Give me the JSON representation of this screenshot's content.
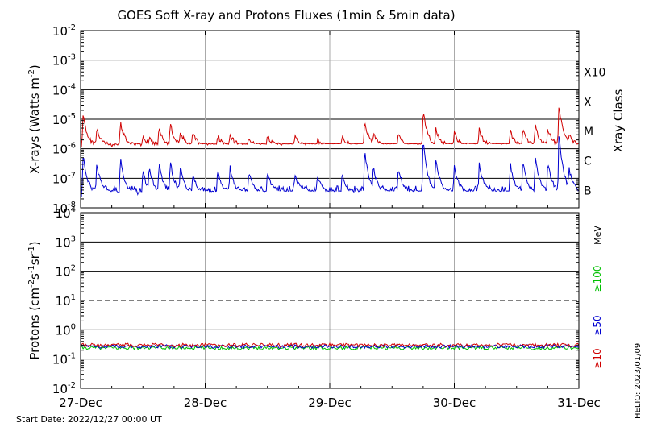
{
  "title": "GOES Soft X-ray and Protons Fluxes   (1min & 5min data)",
  "footer_left": "Start Date: 2022/12/27 00:00 UT",
  "footer_right": "HELIO: 2023/01/09",
  "chart_data": [
    {
      "type": "line",
      "name": "xray",
      "ylabel": "X-rays (Watts m",
      "ylabel_sup": "-2",
      "ylabel_close": ")",
      "yscale": "log",
      "ylim": [
        1e-08,
        0.01
      ],
      "xlim": [
        0,
        4
      ],
      "x_ticks": [
        0,
        1,
        2,
        3,
        4
      ],
      "x_tick_labels": [
        "27-Dec",
        "28-Dec",
        "29-Dec",
        "30-Dec",
        "31-Dec"
      ],
      "y_tick_labels": [
        {
          "base": "10",
          "exp": "-8"
        },
        {
          "base": "10",
          "exp": "-7"
        },
        {
          "base": "10",
          "exp": "-6"
        },
        {
          "base": "10",
          "exp": "-5"
        },
        {
          "base": "10",
          "exp": "-4"
        },
        {
          "base": "10",
          "exp": "-3"
        },
        {
          "base": "10",
          "exp": "-2"
        }
      ],
      "right_label": "Xray Class",
      "class_labels": [
        {
          "label": "B",
          "value": 1e-07
        },
        {
          "label": "C",
          "value": 1e-06
        },
        {
          "label": "M",
          "value": 1e-05
        },
        {
          "label": "X",
          "value": 0.0001
        },
        {
          "label": "X10",
          "value": 0.001
        }
      ],
      "series": [
        {
          "color": "#d00000",
          "baseline_log10": -5.9,
          "events": [
            [
              0.02,
              -4.85
            ],
            [
              0.13,
              -5.3
            ],
            [
              0.32,
              -5.1
            ],
            [
              0.5,
              -5.55
            ],
            [
              0.55,
              -5.6
            ],
            [
              0.63,
              -5.25
            ],
            [
              0.72,
              -5.15
            ],
            [
              0.8,
              -5.4
            ],
            [
              0.9,
              -5.45
            ],
            [
              1.1,
              -5.55
            ],
            [
              1.2,
              -5.5
            ],
            [
              1.35,
              -5.6
            ],
            [
              1.5,
              -5.55
            ],
            [
              1.72,
              -5.6
            ],
            [
              1.9,
              -5.7
            ],
            [
              2.1,
              -5.6
            ],
            [
              2.28,
              -5.05
            ],
            [
              2.35,
              -5.5
            ],
            [
              2.55,
              -5.45
            ],
            [
              2.75,
              -4.7
            ],
            [
              2.85,
              -5.3
            ],
            [
              3.0,
              -5.45
            ],
            [
              3.2,
              -5.35
            ],
            [
              3.45,
              -5.4
            ],
            [
              3.55,
              -5.3
            ],
            [
              3.65,
              -5.2
            ],
            [
              3.75,
              -5.3
            ],
            [
              3.84,
              -4.5
            ],
            [
              3.92,
              -5.5
            ]
          ]
        },
        {
          "color": "#0000d0",
          "baseline_log10": -7.5,
          "events": [
            [
              0.02,
              -6.2
            ],
            [
              0.13,
              -6.5
            ],
            [
              0.32,
              -6.3
            ],
            [
              0.5,
              -6.75
            ],
            [
              0.55,
              -6.6
            ],
            [
              0.63,
              -6.5
            ],
            [
              0.72,
              -6.4
            ],
            [
              0.8,
              -6.6
            ],
            [
              0.9,
              -6.8
            ],
            [
              1.1,
              -6.7
            ],
            [
              1.2,
              -6.6
            ],
            [
              1.35,
              -6.8
            ],
            [
              1.5,
              -6.75
            ],
            [
              1.72,
              -6.8
            ],
            [
              1.9,
              -6.9
            ],
            [
              2.1,
              -6.8
            ],
            [
              2.28,
              -6.0
            ],
            [
              2.35,
              -6.6
            ],
            [
              2.55,
              -6.6
            ],
            [
              2.75,
              -5.6
            ],
            [
              2.85,
              -6.3
            ],
            [
              3.0,
              -6.55
            ],
            [
              3.2,
              -6.45
            ],
            [
              3.45,
              -6.5
            ],
            [
              3.55,
              -6.4
            ],
            [
              3.65,
              -6.3
            ],
            [
              3.75,
              -6.4
            ],
            [
              3.84,
              -5.35
            ],
            [
              3.92,
              -6.6
            ]
          ]
        }
      ]
    },
    {
      "type": "line",
      "name": "protons",
      "ylabel": "Protons (cm",
      "ylabel_sup1": "-2",
      "ylabel_mid": "s",
      "ylabel_sup2": "-1",
      "ylabel_mid2": "sr",
      "ylabel_sup3": "-1",
      "ylabel_close": ")",
      "yscale": "log",
      "ylim": [
        0.01,
        10000
      ],
      "xlim": [
        0,
        4
      ],
      "y_tick_labels": [
        {
          "base": "10",
          "exp": "-2"
        },
        {
          "base": "10",
          "exp": "-1"
        },
        {
          "base": "10",
          "exp": "0"
        },
        {
          "base": "10",
          "exp": "1"
        },
        {
          "base": "10",
          "exp": "2"
        },
        {
          "base": "10",
          "exp": "3"
        },
        {
          "base": "10",
          "exp": "4"
        }
      ],
      "threshold_value": 10,
      "units_label": "MeV",
      "energy_labels": [
        {
          "label": "≥100",
          "color": "#00c000"
        },
        {
          "label": "≥50",
          "color": "#0000d0"
        },
        {
          "label": "≥10",
          "color": "#d00000"
        }
      ],
      "series": [
        {
          "color": "#d00000",
          "level": 0.3
        },
        {
          "color": "#0000d0",
          "level": 0.27
        },
        {
          "color": "#00c000",
          "level": 0.24
        }
      ]
    }
  ]
}
